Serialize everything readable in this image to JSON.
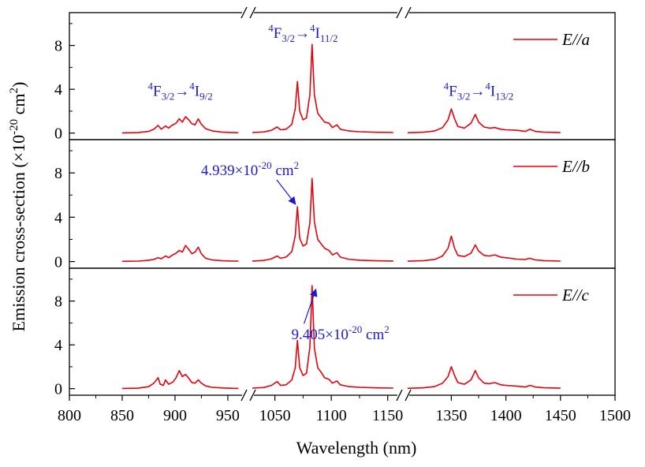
{
  "chart_data": {
    "type": "line",
    "xlabel": "Wavelength (nm)",
    "ylabel": "Emission cross-section (×10",
    "ylabel_sup": "-20",
    "ylabel_unit": " cm",
    "ylabel_unit_sup": "2",
    "ylabel_end": ")",
    "x_ticks": [
      "800",
      "850",
      "900",
      "950",
      "1050",
      "1100",
      "1150",
      "1350",
      "1400",
      "1450",
      "1500"
    ],
    "y_ticks": [
      "0",
      "4",
      "8"
    ],
    "ylim": [
      -0.6,
      11
    ],
    "series_color": "#e8000b",
    "annotation_color": "#1a1acc",
    "panels": [
      {
        "legend": "E//a",
        "transition_labels": [
          {
            "base": "F",
            "pre": "4",
            "sub": "3/2",
            "arrow": "→",
            "base2": "I",
            "pre2": "4",
            "sub2": "9/2",
            "x": 905,
            "y": 3.4
          },
          {
            "base": "F",
            "pre": "4",
            "sub": "3/2",
            "arrow": "→",
            "base2": "I",
            "pre2": "4",
            "sub2": "11/2",
            "x": 1075,
            "y": 8.7
          },
          {
            "base": "F",
            "pre": "4",
            "sub": "3/2",
            "arrow": "→",
            "base2": "I",
            "pre2": "4",
            "sub2": "13/2",
            "x": 1375,
            "y": 3.4
          }
        ],
        "points": [
          [
            850,
            0.02
          ],
          [
            865,
            0.04
          ],
          [
            875,
            0.15
          ],
          [
            880,
            0.35
          ],
          [
            884,
            0.7
          ],
          [
            887,
            0.35
          ],
          [
            891,
            0.65
          ],
          [
            894,
            0.45
          ],
          [
            897,
            0.7
          ],
          [
            901,
            0.9
          ],
          [
            904,
            1.3
          ],
          [
            907,
            1.0
          ],
          [
            910,
            1.5
          ],
          [
            913,
            1.2
          ],
          [
            916,
            0.85
          ],
          [
            919,
            0.75
          ],
          [
            922,
            1.3
          ],
          [
            925,
            0.8
          ],
          [
            929,
            0.4
          ],
          [
            935,
            0.2
          ],
          [
            945,
            0.08
          ],
          [
            955,
            0.04
          ],
          [
            960,
            0.03
          ],
          [
            1030,
            0.05
          ],
          [
            1040,
            0.1
          ],
          [
            1047,
            0.25
          ],
          [
            1052,
            0.55
          ],
          [
            1055,
            0.3
          ],
          [
            1060,
            0.35
          ],
          [
            1065,
            0.8
          ],
          [
            1068,
            2.2
          ],
          [
            1070,
            4.7
          ],
          [
            1072,
            2.0
          ],
          [
            1075,
            1.2
          ],
          [
            1078,
            1.4
          ],
          [
            1081,
            3.5
          ],
          [
            1083,
            8.1
          ],
          [
            1085,
            3.5
          ],
          [
            1088,
            1.8
          ],
          [
            1091,
            1.4
          ],
          [
            1094,
            1.0
          ],
          [
            1098,
            0.9
          ],
          [
            1101,
            0.5
          ],
          [
            1105,
            0.75
          ],
          [
            1108,
            0.35
          ],
          [
            1115,
            0.2
          ],
          [
            1125,
            0.12
          ],
          [
            1140,
            0.07
          ],
          [
            1155,
            0.05
          ],
          [
            1310,
            0.03
          ],
          [
            1325,
            0.08
          ],
          [
            1335,
            0.2
          ],
          [
            1342,
            0.5
          ],
          [
            1347,
            1.2
          ],
          [
            1350,
            2.2
          ],
          [
            1353,
            1.3
          ],
          [
            1356,
            0.6
          ],
          [
            1362,
            0.45
          ],
          [
            1368,
            0.9
          ],
          [
            1372,
            1.7
          ],
          [
            1375,
            1.0
          ],
          [
            1380,
            0.55
          ],
          [
            1385,
            0.45
          ],
          [
            1390,
            0.5
          ],
          [
            1395,
            0.35
          ],
          [
            1400,
            0.3
          ],
          [
            1410,
            0.25
          ],
          [
            1418,
            0.15
          ],
          [
            1422,
            0.35
          ],
          [
            1427,
            0.15
          ],
          [
            1435,
            0.08
          ],
          [
            1450,
            0.04
          ]
        ]
      },
      {
        "legend": "E//b",
        "callout": {
          "pre": "4.939×10",
          "sup": "-20",
          "mid": " cm",
          "sup2": "2",
          "text_x": 1012,
          "text_y": 7.8,
          "target_x": 1070,
          "target_y": 4.94
        },
        "points": [
          [
            850,
            0.02
          ],
          [
            865,
            0.04
          ],
          [
            875,
            0.12
          ],
          [
            880,
            0.2
          ],
          [
            884,
            0.35
          ],
          [
            887,
            0.25
          ],
          [
            891,
            0.5
          ],
          [
            894,
            0.35
          ],
          [
            897,
            0.55
          ],
          [
            901,
            0.75
          ],
          [
            904,
            1.0
          ],
          [
            907,
            0.85
          ],
          [
            910,
            1.45
          ],
          [
            913,
            1.1
          ],
          [
            916,
            0.7
          ],
          [
            919,
            0.85
          ],
          [
            922,
            1.3
          ],
          [
            925,
            0.7
          ],
          [
            929,
            0.3
          ],
          [
            935,
            0.15
          ],
          [
            945,
            0.07
          ],
          [
            955,
            0.04
          ],
          [
            960,
            0.03
          ],
          [
            1030,
            0.05
          ],
          [
            1040,
            0.1
          ],
          [
            1047,
            0.25
          ],
          [
            1052,
            0.5
          ],
          [
            1055,
            0.3
          ],
          [
            1060,
            0.4
          ],
          [
            1065,
            0.9
          ],
          [
            1068,
            2.3
          ],
          [
            1070,
            4.94
          ],
          [
            1072,
            2.1
          ],
          [
            1075,
            1.4
          ],
          [
            1078,
            1.6
          ],
          [
            1081,
            3.5
          ],
          [
            1083,
            7.5
          ],
          [
            1085,
            3.6
          ],
          [
            1088,
            2.0
          ],
          [
            1091,
            1.6
          ],
          [
            1094,
            1.2
          ],
          [
            1098,
            1.0
          ],
          [
            1101,
            0.6
          ],
          [
            1105,
            0.8
          ],
          [
            1108,
            0.4
          ],
          [
            1115,
            0.22
          ],
          [
            1125,
            0.12
          ],
          [
            1140,
            0.07
          ],
          [
            1155,
            0.05
          ],
          [
            1310,
            0.03
          ],
          [
            1325,
            0.08
          ],
          [
            1335,
            0.2
          ],
          [
            1342,
            0.5
          ],
          [
            1347,
            1.2
          ],
          [
            1350,
            2.3
          ],
          [
            1353,
            1.2
          ],
          [
            1356,
            0.55
          ],
          [
            1362,
            0.45
          ],
          [
            1368,
            0.75
          ],
          [
            1372,
            1.5
          ],
          [
            1375,
            0.95
          ],
          [
            1380,
            0.55
          ],
          [
            1385,
            0.5
          ],
          [
            1390,
            0.6
          ],
          [
            1395,
            0.4
          ],
          [
            1400,
            0.35
          ],
          [
            1410,
            0.22
          ],
          [
            1418,
            0.2
          ],
          [
            1422,
            0.3
          ],
          [
            1427,
            0.15
          ],
          [
            1435,
            0.08
          ],
          [
            1450,
            0.04
          ]
        ]
      },
      {
        "legend": "E//c",
        "callout": {
          "pre": "9.405×10",
          "sup": "-20",
          "mid": " cm",
          "sup2": "2",
          "text_x": 1108,
          "text_y": 4.5,
          "target_x": 1084,
          "target_y": 9.3
        },
        "points": [
          [
            850,
            0.02
          ],
          [
            865,
            0.04
          ],
          [
            875,
            0.18
          ],
          [
            880,
            0.5
          ],
          [
            884,
            1.0
          ],
          [
            886,
            0.4
          ],
          [
            889,
            0.3
          ],
          [
            891,
            0.8
          ],
          [
            894,
            0.4
          ],
          [
            898,
            0.6
          ],
          [
            901,
            1.0
          ],
          [
            904,
            1.65
          ],
          [
            907,
            1.1
          ],
          [
            910,
            1.3
          ],
          [
            913,
            0.95
          ],
          [
            916,
            0.55
          ],
          [
            919,
            0.5
          ],
          [
            922,
            0.8
          ],
          [
            925,
            0.5
          ],
          [
            929,
            0.25
          ],
          [
            935,
            0.12
          ],
          [
            945,
            0.06
          ],
          [
            955,
            0.03
          ],
          [
            960,
            0.03
          ],
          [
            1030,
            0.05
          ],
          [
            1040,
            0.1
          ],
          [
            1047,
            0.3
          ],
          [
            1052,
            0.65
          ],
          [
            1055,
            0.3
          ],
          [
            1060,
            0.35
          ],
          [
            1065,
            0.8
          ],
          [
            1068,
            1.9
          ],
          [
            1070,
            4.4
          ],
          [
            1072,
            1.9
          ],
          [
            1075,
            1.2
          ],
          [
            1078,
            1.4
          ],
          [
            1081,
            3.8
          ],
          [
            1083,
            9.405
          ],
          [
            1085,
            3.7
          ],
          [
            1088,
            1.9
          ],
          [
            1091,
            1.5
          ],
          [
            1094,
            1.0
          ],
          [
            1098,
            0.85
          ],
          [
            1101,
            0.5
          ],
          [
            1105,
            0.7
          ],
          [
            1108,
            0.35
          ],
          [
            1115,
            0.2
          ],
          [
            1125,
            0.12
          ],
          [
            1140,
            0.07
          ],
          [
            1155,
            0.05
          ],
          [
            1310,
            0.03
          ],
          [
            1325,
            0.08
          ],
          [
            1335,
            0.2
          ],
          [
            1342,
            0.5
          ],
          [
            1347,
            1.1
          ],
          [
            1350,
            2.0
          ],
          [
            1353,
            1.2
          ],
          [
            1356,
            0.55
          ],
          [
            1362,
            0.4
          ],
          [
            1368,
            0.8
          ],
          [
            1372,
            1.65
          ],
          [
            1375,
            1.0
          ],
          [
            1380,
            0.5
          ],
          [
            1385,
            0.45
          ],
          [
            1390,
            0.55
          ],
          [
            1395,
            0.35
          ],
          [
            1400,
            0.3
          ],
          [
            1410,
            0.22
          ],
          [
            1418,
            0.15
          ],
          [
            1422,
            0.3
          ],
          [
            1427,
            0.15
          ],
          [
            1435,
            0.08
          ],
          [
            1450,
            0.04
          ]
        ]
      }
    ]
  }
}
